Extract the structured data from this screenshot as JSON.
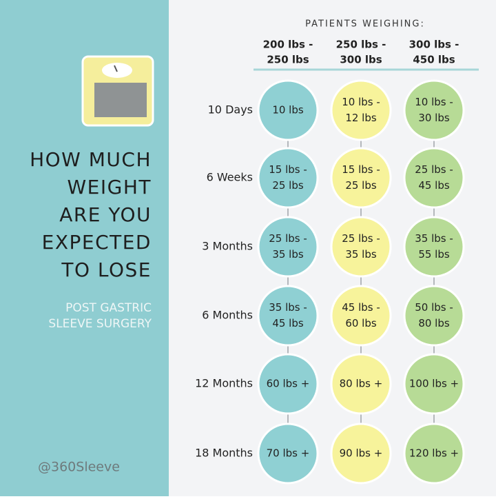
{
  "sidebar": {
    "title_lines": [
      "HOW MUCH",
      "WEIGHT",
      "ARE YOU",
      "EXPECTED",
      "TO LOSE"
    ],
    "subtitle_lines": [
      "POST GASTRIC",
      "SLEEVE SURGERY"
    ],
    "handle": "@360Sleeve"
  },
  "table": {
    "header": "PATIENTS WEIGHING:",
    "columns": [
      [
        "200 lbs -",
        "250 lbs"
      ],
      [
        "250 lbs -",
        "300 lbs"
      ],
      [
        "300 lbs -",
        "450 lbs"
      ]
    ],
    "rows": [
      {
        "label": "10 Days",
        "cells": [
          [
            "10 lbs"
          ],
          [
            "10 lbs -",
            "12 lbs"
          ],
          [
            "10 lbs -",
            "30 lbs"
          ]
        ]
      },
      {
        "label": "6 Weeks",
        "cells": [
          [
            "15 lbs -",
            "25 lbs"
          ],
          [
            "15 lbs -",
            "25 lbs"
          ],
          [
            "25 lbs -",
            "45 lbs"
          ]
        ]
      },
      {
        "label": "3 Months",
        "cells": [
          [
            "25 lbs -",
            "35 lbs"
          ],
          [
            "25 lbs -",
            "35 lbs"
          ],
          [
            "35 lbs -",
            "55 lbs"
          ]
        ]
      },
      {
        "label": "6 Months",
        "cells": [
          [
            "35 lbs -",
            "45 lbs"
          ],
          [
            "45 lbs -",
            "60 lbs"
          ],
          [
            "50 lbs -",
            "80 lbs"
          ]
        ]
      },
      {
        "label": "12 Months",
        "cells": [
          [
            "60 lbs +"
          ],
          [
            "80 lbs +"
          ],
          [
            "100 lbs +"
          ]
        ]
      },
      {
        "label": "18 Months",
        "cells": [
          [
            "70 lbs +"
          ],
          [
            "90 lbs +"
          ],
          [
            "120 lbs +"
          ]
        ]
      }
    ]
  }
}
